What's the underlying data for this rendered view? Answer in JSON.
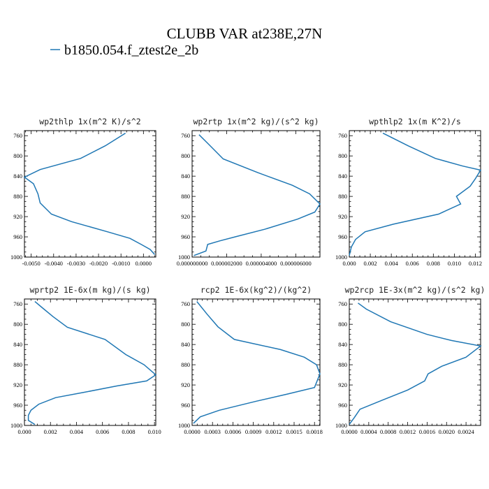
{
  "figure": {
    "title": "CLUBB VAR at238E,27N",
    "legend_label": "b1850.054.f_ztest2e_2b",
    "series_color": "#1f77b4"
  },
  "chart_data": [
    {
      "type": "line",
      "title": "wp2thlp  1x(m^2 K)/s^2",
      "xlim": [
        -0.0053,
        0.00055
      ],
      "ylim": [
        1000,
        750
      ],
      "xticks": [
        -0.005,
        -0.004,
        -0.003,
        -0.002,
        -0.001,
        0.0
      ],
      "xtick_labels": [
        "-0.0050",
        "-0.0040",
        "-0.0030",
        "-0.0020",
        "-0.0010",
        "0.0000"
      ],
      "yticks": [
        760,
        800,
        840,
        880,
        920,
        960,
        1000
      ],
      "ytick_labels": [
        "760",
        "800",
        "840",
        "880",
        "920",
        "960",
        "1000"
      ],
      "grid": false,
      "series": [
        {
          "name": "b1850.054.f_ztest2e_2b",
          "x": [
            -0.0008,
            -0.0017,
            -0.0028,
            -0.0046,
            -0.0053,
            -0.0049,
            -0.0047,
            -0.0046,
            -0.0041,
            -0.0032,
            -0.0016,
            -0.0006,
            -0.0001,
            0.0003,
            0.0005
          ],
          "y": [
            755,
            780,
            805,
            827,
            842,
            855,
            875,
            893,
            915,
            930,
            950,
            963,
            975,
            985,
            995
          ]
        }
      ]
    },
    {
      "type": "line",
      "title": "wp2rtp  1x(m^2 kg)/(s^2 kg)",
      "xlim": [
        0.0,
        7.4e-06
      ],
      "ylim": [
        1000,
        750
      ],
      "xticks": [
        0.0,
        2e-06,
        4e-06,
        6e-06
      ],
      "xtick_labels": [
        "0.000000000",
        "0.000002000",
        "0.000004000",
        "0.000006000"
      ],
      "yticks": [
        760,
        800,
        840,
        880,
        920,
        960,
        1000
      ],
      "ytick_labels": [
        "760",
        "800",
        "840",
        "880",
        "920",
        "960",
        "1000"
      ],
      "grid": false,
      "series": [
        {
          "name": "b1850.054.f_ztest2e_2b",
          "x": [
            4e-07,
            9e-07,
            1.8e-06,
            3.8e-06,
            5.8e-06,
            6.8e-06,
            7.4e-06,
            7.1e-06,
            6.1e-06,
            4.2e-06,
            2.5e-06,
            1.6e-06,
            9e-07,
            8e-07,
            1e-07
          ],
          "y": [
            758,
            775,
            806,
            833,
            858,
            875,
            895,
            911,
            925,
            945,
            960,
            968,
            975,
            988,
            997
          ]
        }
      ]
    },
    {
      "type": "line",
      "title": "wpthlp2  1x(m K^2)/s",
      "xlim": [
        0.0,
        0.0125
      ],
      "ylim": [
        1000,
        750
      ],
      "xticks": [
        0.0,
        0.002,
        0.004,
        0.006,
        0.008,
        0.01,
        0.012
      ],
      "xtick_labels": [
        "0.000",
        "0.002",
        "0.004",
        "0.006",
        "0.008",
        "0.010",
        "0.012"
      ],
      "yticks": [
        760,
        800,
        840,
        880,
        920,
        960,
        1000
      ],
      "ytick_labels": [
        "760",
        "800",
        "840",
        "880",
        "920",
        "960",
        "1000"
      ],
      "grid": false,
      "series": [
        {
          "name": "b1850.054.f_ztest2e_2b",
          "x": [
            0.0032,
            0.0056,
            0.0082,
            0.0108,
            0.0125,
            0.012,
            0.0115,
            0.0102,
            0.0106,
            0.0085,
            0.0042,
            0.0015,
            0.0006,
            0.0002,
            0.0
          ],
          "y": [
            755,
            780,
            805,
            820,
            828,
            845,
            860,
            880,
            895,
            915,
            935,
            950,
            965,
            980,
            997
          ]
        }
      ]
    },
    {
      "type": "line",
      "title": "wprtp2  1E-6x(m kg)/(s kg)",
      "xlim": [
        0.0,
        0.0101
      ],
      "ylim": [
        1000,
        750
      ],
      "xticks": [
        0.0,
        0.002,
        0.004,
        0.006,
        0.008,
        0.01
      ],
      "xtick_labels": [
        "0.000",
        "0.002",
        "0.004",
        "0.006",
        "0.008",
        "0.010"
      ],
      "yticks": [
        760,
        800,
        840,
        880,
        920,
        960,
        1000
      ],
      "ytick_labels": [
        "760",
        "800",
        "840",
        "880",
        "920",
        "960",
        "1000"
      ],
      "grid": false,
      "series": [
        {
          "name": "b1850.054.f_ztest2e_2b",
          "x": [
            0.0008,
            0.0014,
            0.0022,
            0.0033,
            0.0062,
            0.0078,
            0.0092,
            0.0101,
            0.0094,
            0.0071,
            0.0045,
            0.0024,
            0.0011,
            0.0005,
            0.0003,
            0.0003,
            0.0008
          ],
          "y": [
            755,
            768,
            785,
            806,
            830,
            860,
            880,
            900,
            912,
            922,
            935,
            945,
            958,
            970,
            980,
            990,
            998
          ]
        }
      ]
    },
    {
      "type": "line",
      "title": "rcp2  1E-6x(kg^2)/(kg^2)",
      "xlim": [
        0.0,
        0.00188
      ],
      "ylim": [
        1000,
        750
      ],
      "xticks": [
        0.0,
        0.0003,
        0.0006,
        0.0009,
        0.0012,
        0.0015,
        0.0018
      ],
      "xtick_labels": [
        "0.0000",
        "0.0003",
        "0.0006",
        "0.0009",
        "0.0012",
        "0.0015",
        "0.0018"
      ],
      "yticks": [
        760,
        800,
        840,
        880,
        920,
        960,
        1000
      ],
      "ytick_labels": [
        "760",
        "800",
        "840",
        "880",
        "920",
        "960",
        "1000"
      ],
      "grid": false,
      "series": [
        {
          "name": "b1850.054.f_ztest2e_2b",
          "x": [
            7e-05,
            0.00022,
            0.00038,
            0.00062,
            0.0013,
            0.00165,
            0.00183,
            0.00188,
            0.0018,
            0.0014,
            0.00095,
            0.0004,
            0.00012,
            2e-05
          ],
          "y": [
            755,
            780,
            805,
            830,
            850,
            865,
            880,
            898,
            925,
            938,
            952,
            970,
            983,
            996
          ]
        }
      ]
    },
    {
      "type": "line",
      "title": "wp2rcp  1E-3x(m^2 kg)/(s^2 kg)",
      "xlim": [
        0.0,
        0.0027
      ],
      "ylim": [
        1000,
        750
      ],
      "xticks": [
        0.0,
        0.0004,
        0.0008,
        0.0012,
        0.0016,
        0.002,
        0.0024
      ],
      "xtick_labels": [
        "0.0000",
        "0.0004",
        "0.0008",
        "0.0012",
        "0.0016",
        "0.0020",
        "0.0024"
      ],
      "yticks": [
        760,
        800,
        840,
        880,
        920,
        960,
        1000
      ],
      "ytick_labels": [
        "760",
        "800",
        "840",
        "880",
        "920",
        "960",
        "1000"
      ],
      "grid": false,
      "series": [
        {
          "name": "b1850.054.f_ztest2e_2b",
          "x": [
            0.00018,
            0.00035,
            0.00085,
            0.0016,
            0.0021,
            0.0027,
            0.0024,
            0.0019,
            0.00162,
            0.00155,
            0.0012,
            0.00068,
            0.00022,
            0.0001,
            0.0
          ],
          "y": [
            758,
            770,
            795,
            820,
            832,
            843,
            865,
            883,
            898,
            912,
            930,
            950,
            968,
            985,
            998
          ]
        }
      ]
    }
  ]
}
